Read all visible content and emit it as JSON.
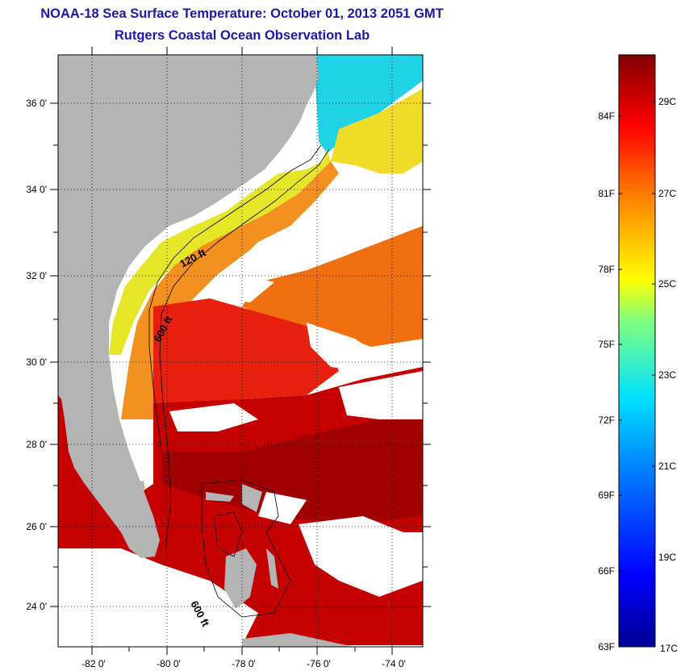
{
  "header": {
    "title": "NOAA-18 Sea Surface Temperature:  October 01, 2013 2051 GMT",
    "subtitle": "Rutgers Coastal Ocean Observation Lab"
  },
  "map": {
    "lat_labels": [
      "36 0'",
      "34 0'",
      "32 0'",
      "30 0'",
      "28 0'",
      "26 0'",
      "24 0'"
    ],
    "lon_labels": [
      "-82 0'",
      "-80 0'",
      "-78 0'",
      "-76 0'",
      "-74 0'"
    ],
    "contour_labels": {
      "shelf_120": "120 ft",
      "slope_600_north": "600 ft",
      "slope_600_south": "600 ft"
    },
    "colors": {
      "land": "#b4b4b4",
      "cloud": "#ffffff",
      "warm": "#c40000",
      "orange": "#f07010",
      "yellow": "#f2d21e",
      "cyan": "#20d2e6"
    }
  },
  "colorbar": {
    "fahrenheit_labels": [
      "84F",
      "81F",
      "78F",
      "75F",
      "72F",
      "69F",
      "66F",
      "63F"
    ],
    "celsius_labels": [
      "29C",
      "27C",
      "25C",
      "23C",
      "21C",
      "19C",
      "17C"
    ],
    "scale_min_f": 63,
    "scale_max_f": 86
  }
}
